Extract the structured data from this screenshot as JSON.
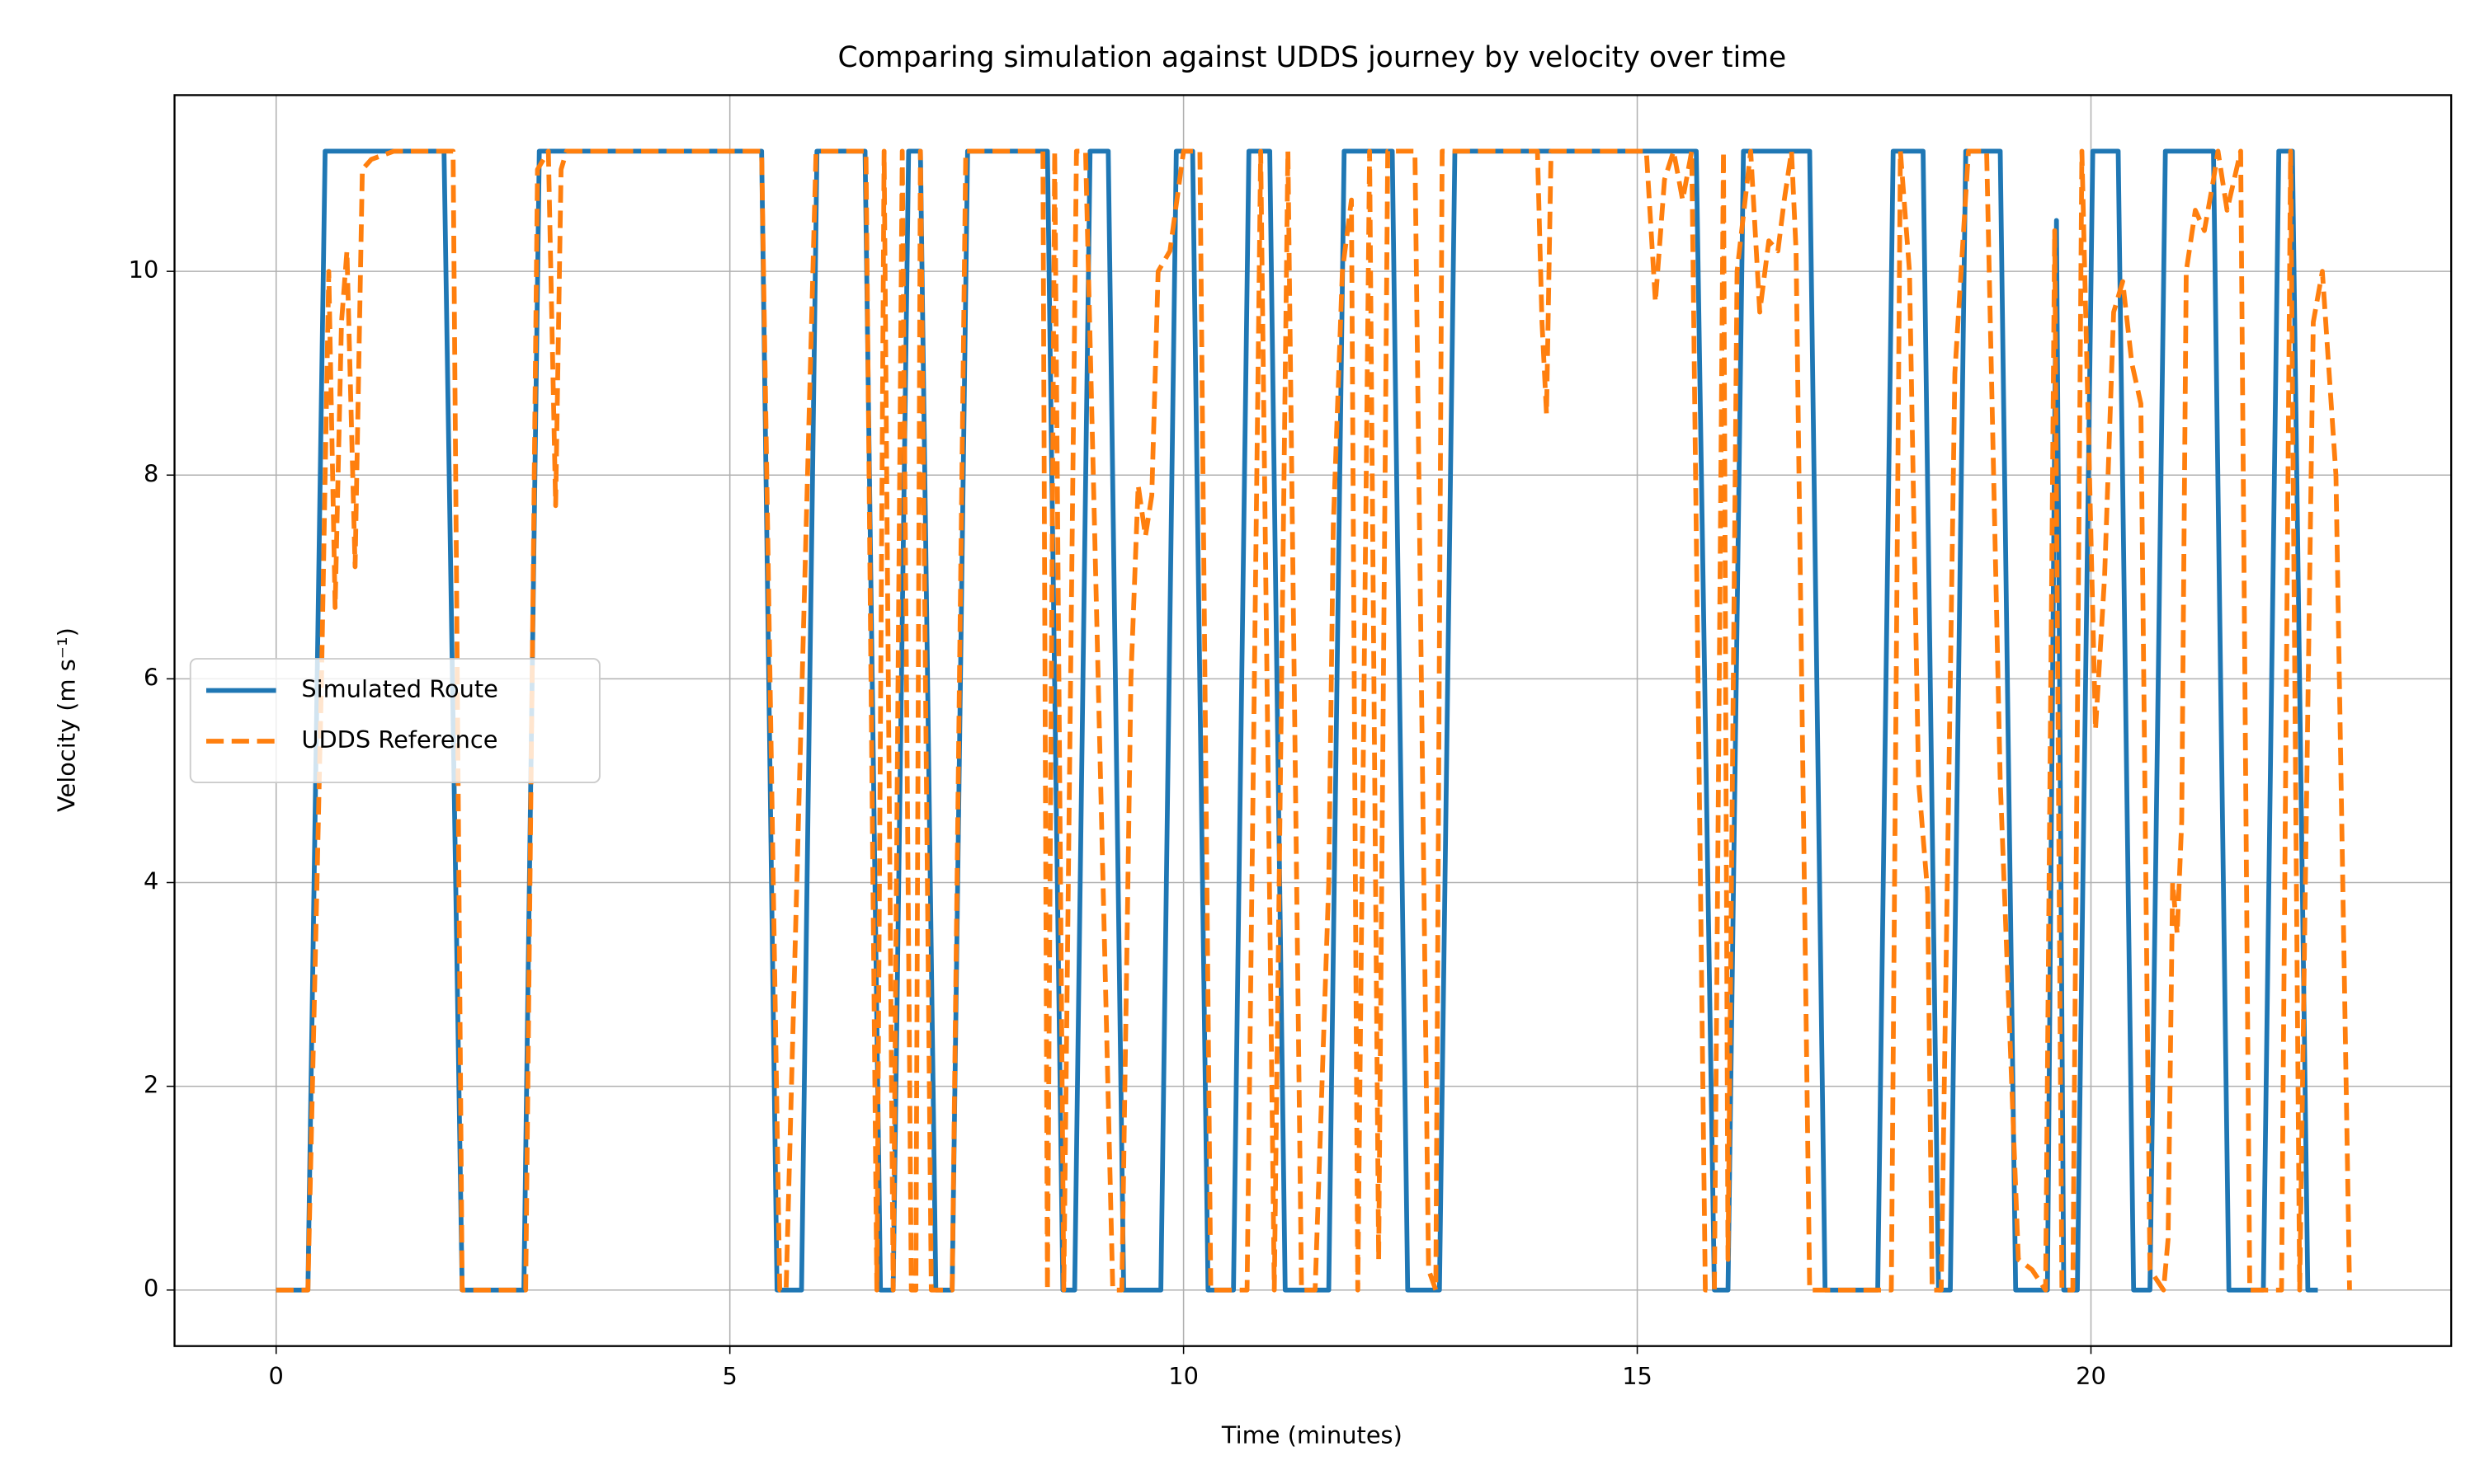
{
  "chart_data": {
    "type": "line",
    "title": "Comparing simulation against UDDS journey by velocity over time",
    "x_label": "Time (minutes)",
    "y_label": "Velocity (m s⁻¹)",
    "xlim": [
      -1.12,
      23.97
    ],
    "ylim": [
      -0.55,
      11.73
    ],
    "xticks": [
      0,
      5,
      10,
      15,
      20
    ],
    "yticks": [
      0,
      2,
      4,
      6,
      8,
      10
    ],
    "grid": true,
    "legend": "center left",
    "series": [
      {
        "name": "Simulated Route",
        "color": "#1f77b4",
        "linestyle": "solid",
        "x": [
          0,
          0.35,
          0.54,
          1.85,
          2.05,
          2.73,
          2.9,
          5.35,
          5.52,
          5.79,
          5.96,
          6.49,
          6.66,
          6.8,
          6.97,
          7.1,
          7.27,
          7.45,
          7.62,
          8.5,
          8.67,
          8.8,
          8.97,
          9.17,
          9.34,
          9.75,
          9.92,
          10.1,
          10.27,
          10.55,
          10.72,
          10.95,
          11.12,
          11.6,
          11.77,
          12.3,
          12.47,
          12.82,
          12.99,
          15.65,
          15.85,
          16.0,
          16.17,
          16.9,
          17.07,
          17.65,
          17.82,
          18.15,
          18.32,
          18.45,
          18.62,
          19.0,
          19.17,
          19.52,
          19.62,
          19.7,
          19.85,
          20.02,
          20.3,
          20.47,
          20.65,
          20.82,
          21.35,
          21.52,
          21.9,
          22.07,
          22.22,
          22.39,
          22.5
        ],
        "values": [
          0,
          0,
          11.18,
          11.18,
          0,
          0,
          11.18,
          11.18,
          0,
          0,
          11.18,
          11.18,
          0,
          0,
          11.18,
          11.18,
          0,
          0,
          11.18,
          11.18,
          0,
          0,
          11.18,
          11.18,
          0,
          0,
          11.18,
          11.18,
          0,
          0,
          11.18,
          11.18,
          0,
          0,
          11.18,
          11.18,
          0,
          0,
          11.18,
          11.18,
          0,
          0,
          11.18,
          11.18,
          0,
          0,
          11.18,
          11.18,
          0,
          0,
          11.18,
          11.18,
          0,
          0,
          10.5,
          0,
          0,
          11.18,
          11.18,
          0,
          0,
          11.18,
          11.18,
          0,
          0,
          11.18,
          11.18,
          0,
          0
        ]
      },
      {
        "name": "UDDS Reference",
        "color": "#ff7f0e",
        "linestyle": "dashed",
        "x": [
          0,
          0.35,
          0.5,
          0.58,
          0.65,
          0.72,
          0.78,
          0.87,
          0.95,
          1.05,
          1.3,
          1.95,
          2.05,
          2.75,
          2.88,
          3.0,
          3.08,
          3.14,
          3.2,
          5.35,
          5.55,
          5.62,
          5.95,
          6.5,
          6.62,
          6.7,
          6.8,
          6.9,
          7.0,
          7.05,
          7.1,
          7.22,
          7.45,
          7.6,
          8.45,
          8.5,
          8.58,
          8.68,
          8.82,
          8.92,
          9.22,
          9.32,
          9.42,
          9.5,
          9.58,
          9.65,
          9.72,
          9.85,
          10.0,
          10.18,
          10.3,
          10.55,
          10.7,
          10.85,
          11.0,
          11.15,
          11.3,
          11.45,
          11.6,
          11.65,
          11.75,
          11.85,
          11.92,
          12.05,
          12.15,
          12.25,
          12.55,
          12.7,
          12.78,
          12.85,
          13.2,
          13.9,
          13.95,
          14.0,
          14.05,
          14.5,
          15.1,
          15.2,
          15.3,
          15.4,
          15.5,
          15.6,
          15.75,
          15.85,
          15.95,
          16.0,
          16.1,
          16.25,
          16.35,
          16.45,
          16.55,
          16.62,
          16.7,
          16.75,
          16.9,
          17.1,
          17.15,
          17.8,
          17.9,
          18.0,
          18.1,
          18.2,
          18.25,
          18.35,
          18.5,
          18.65,
          18.85,
          19.0,
          19.2,
          19.35,
          19.5,
          19.6,
          19.68,
          19.8,
          19.9,
          20.05,
          20.15,
          20.25,
          20.35,
          20.45,
          20.55,
          20.65,
          20.8,
          20.85,
          20.9,
          20.95,
          21.0,
          21.05,
          21.15,
          21.25,
          21.35,
          21.4,
          21.5,
          21.65,
          21.75,
          21.95,
          22.1,
          22.2,
          22.3,
          22.45,
          22.55,
          22.7,
          22.85
        ],
        "values": [
          0,
          0,
          6,
          10,
          6.7,
          9.5,
          10.2,
          7.1,
          11,
          11.1,
          11.18,
          11.18,
          0,
          0,
          11,
          11.18,
          7.7,
          11,
          11.18,
          11.18,
          0,
          0,
          11.18,
          11.18,
          0,
          11.18,
          0,
          11.18,
          0,
          0,
          11.18,
          0,
          0,
          11.18,
          11.18,
          0,
          11.18,
          0,
          11.18,
          11.18,
          0,
          0,
          6,
          7.9,
          7.4,
          7.8,
          10,
          10.2,
          11.18,
          11.18,
          0,
          0,
          0,
          11.18,
          0,
          11.18,
          0,
          0,
          4,
          7.5,
          10,
          10.7,
          0,
          11.18,
          0.3,
          11.18,
          11.18,
          0.2,
          0,
          11.18,
          11.18,
          11.18,
          9.5,
          8.6,
          11.18,
          11.18,
          11.18,
          9.7,
          10.9,
          11.18,
          10.7,
          11.18,
          0,
          0,
          11.18,
          0.3,
          10,
          11.18,
          9.6,
          10.3,
          10.2,
          10.7,
          11.18,
          10.2,
          0,
          0,
          0,
          0,
          11.18,
          10,
          5,
          3.9,
          0,
          0,
          9,
          11.18,
          11.18,
          5,
          0.3,
          0.2,
          0,
          10.4,
          0,
          0,
          11.18,
          5.5,
          7,
          9.6,
          9.9,
          9.1,
          8.7,
          0.2,
          0,
          0.5,
          4,
          3.5,
          4.6,
          10,
          10.6,
          10.4,
          10.9,
          11.18,
          10.6,
          11.18,
          0,
          0,
          0,
          11.18,
          0,
          9.5,
          10,
          8,
          0
        ]
      }
    ]
  }
}
